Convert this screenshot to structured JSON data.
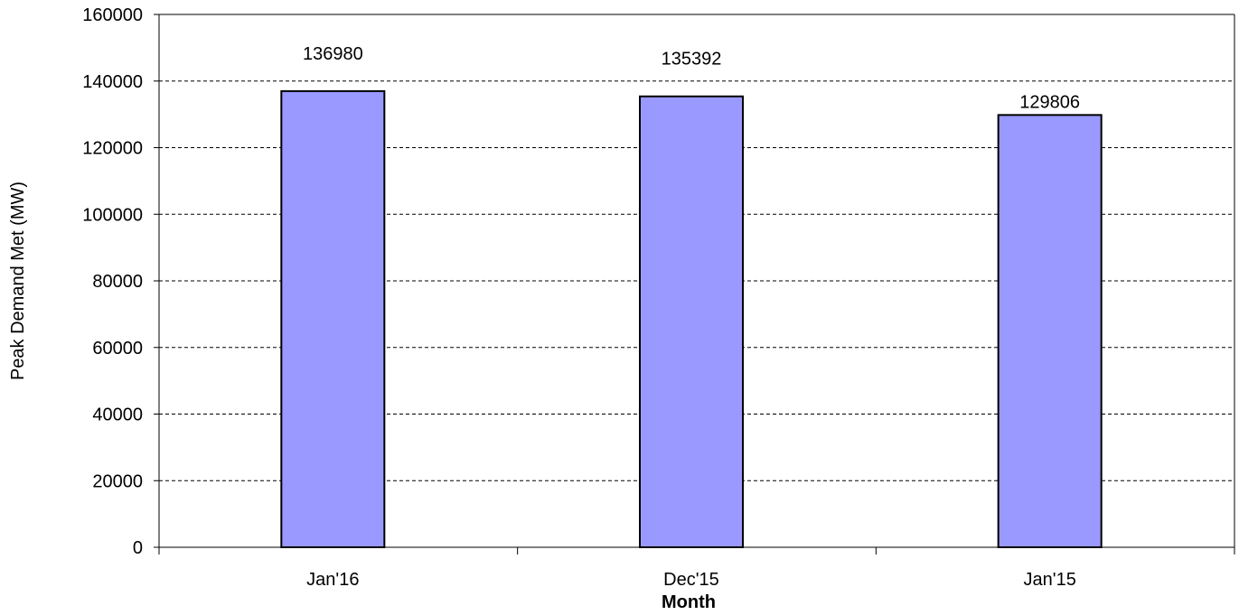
{
  "chart_data": {
    "type": "bar",
    "categories": [
      "Jan'16",
      "Dec'15",
      "Jan'15"
    ],
    "values": [
      136980,
      135392,
      129806
    ],
    "data_labels": [
      "136980",
      "135392",
      "129806"
    ],
    "xlabel": "Month",
    "ylabel": "Peak Demand Met (MW)",
    "ylim": [
      0,
      160000
    ],
    "yticks": [
      0,
      20000,
      40000,
      60000,
      80000,
      100000,
      120000,
      140000,
      160000
    ],
    "ytick_labels": [
      "0",
      "20000",
      "40000",
      "60000",
      "80000",
      "100000",
      "120000",
      "140000",
      "160000"
    ],
    "grid": true,
    "grid_style": "dashed",
    "bar_color": "#9999ff",
    "bar_border_color": "#000000"
  }
}
